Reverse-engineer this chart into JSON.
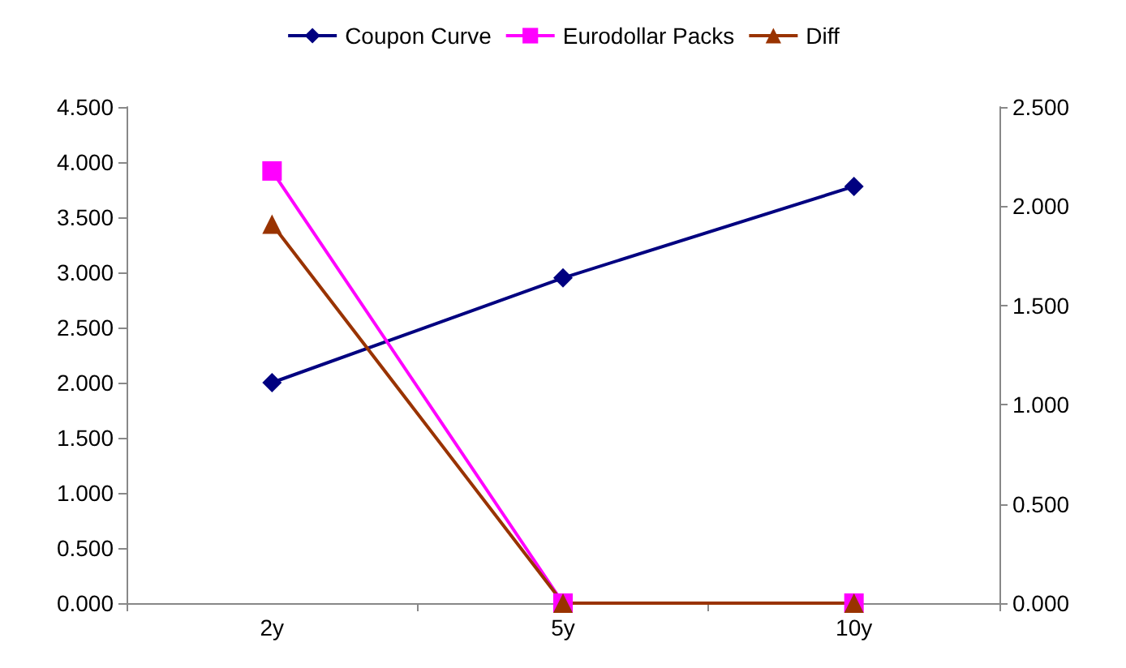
{
  "chart_data": {
    "type": "line",
    "categories": [
      "2y",
      "5y",
      "10y"
    ],
    "series": [
      {
        "name": "Coupon Curve",
        "color": "#000080",
        "marker": "diamond",
        "values": [
          2.0,
          2.95,
          3.78
        ]
      },
      {
        "name": "Eurodollar Packs",
        "color": "#ff00ff",
        "marker": "square",
        "values": [
          3.92,
          0,
          0
        ]
      },
      {
        "name": "Diff",
        "color": "#993300",
        "marker": "triangle",
        "axis": "y2",
        "values": [
          1.91,
          0,
          0
        ]
      }
    ],
    "ylim": [
      0,
      4.5
    ],
    "yticks": [
      {
        "value": 0,
        "label": "0.000"
      },
      {
        "value": 0.5,
        "label": "0.500"
      },
      {
        "value": 1,
        "label": "1.000"
      },
      {
        "value": 1.5,
        "label": "1.500"
      },
      {
        "value": 2,
        "label": "2.000"
      },
      {
        "value": 2.5,
        "label": "2.500"
      },
      {
        "value": 3,
        "label": "3.000"
      },
      {
        "value": 3.5,
        "label": "3.500"
      },
      {
        "value": 4,
        "label": "4.000"
      },
      {
        "value": 4.5,
        "label": "4.500"
      }
    ],
    "y2lim": [
      0,
      2.5
    ],
    "y2ticks": [
      {
        "value": 0,
        "label": "0.000"
      },
      {
        "value": 0.5,
        "label": "0.500"
      },
      {
        "value": 1,
        "label": "1.000"
      },
      {
        "value": 1.5,
        "label": "1.500"
      },
      {
        "value": 2,
        "label": "2.000"
      },
      {
        "value": 2.5,
        "label": "2.500"
      }
    ],
    "grid": false,
    "legend": "top",
    "line_style": "solid"
  }
}
